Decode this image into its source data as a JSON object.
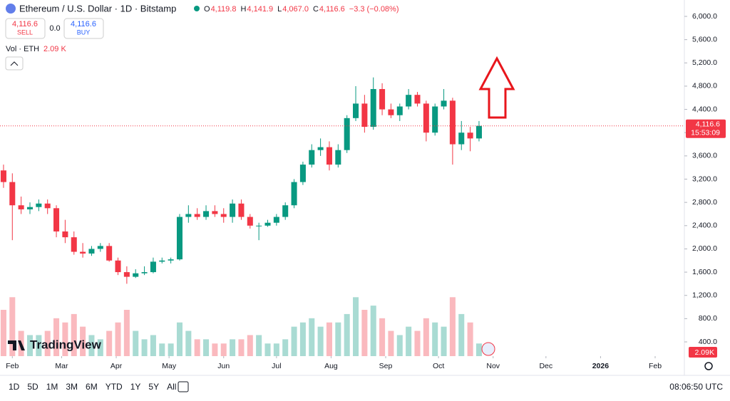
{
  "header": {
    "symbol": "Ethereum / U.S. Dollar · 1D · Bitstamp",
    "ohlc": [
      {
        "key": "O",
        "value": "4,119.8"
      },
      {
        "key": "H",
        "value": "4,141.9"
      },
      {
        "key": "L",
        "value": "4,067.0"
      },
      {
        "key": "C",
        "value": "4,116.6"
      }
    ],
    "change": "−3.3 (−0.08%)",
    "sell_price": "4,116.6",
    "sell_label": "SELL",
    "spread": "0.0",
    "buy_price": "4,116.6",
    "buy_label": "BUY",
    "volume_label": "Vol · ETH",
    "volume_value": "2.09 K"
  },
  "chart_data": {
    "type": "candlestick",
    "up_color": "#089981",
    "down_color": "#f23645",
    "grid": false,
    "x": [
      0,
      5,
      10,
      15,
      20,
      25,
      30,
      35,
      40,
      45,
      50,
      55,
      60,
      65,
      70,
      75,
      80,
      85,
      90,
      95,
      100,
      105,
      110,
      115,
      120,
      125,
      130,
      135,
      140,
      145,
      150,
      155,
      160,
      165,
      170,
      175,
      180,
      185,
      190,
      195,
      200,
      205,
      210,
      215,
      220,
      225,
      230,
      235,
      240,
      245,
      250,
      255,
      260,
      265,
      270
    ],
    "candles": [
      [
        3350,
        3450,
        3050,
        3150
      ],
      [
        3150,
        3300,
        2150,
        2750
      ],
      [
        2750,
        2900,
        2600,
        2680
      ],
      [
        2680,
        2800,
        2600,
        2720
      ],
      [
        2720,
        2850,
        2650,
        2780
      ],
      [
        2780,
        2850,
        2600,
        2700
      ],
      [
        2700,
        2750,
        2200,
        2300
      ],
      [
        2300,
        2500,
        2100,
        2200
      ],
      [
        2200,
        2300,
        1900,
        1950
      ],
      [
        1950,
        2100,
        1850,
        1920
      ],
      [
        1920,
        2050,
        1880,
        2000
      ],
      [
        2000,
        2100,
        1950,
        2050
      ],
      [
        2050,
        2100,
        1780,
        1800
      ],
      [
        1800,
        1850,
        1550,
        1600
      ],
      [
        1600,
        1700,
        1400,
        1520
      ],
      [
        1520,
        1650,
        1500,
        1580
      ],
      [
        1580,
        1700,
        1550,
        1600
      ],
      [
        1600,
        1850,
        1580,
        1780
      ],
      [
        1780,
        1850,
        1750,
        1800
      ],
      [
        1800,
        1850,
        1750,
        1820
      ],
      [
        1820,
        2600,
        1800,
        2550
      ],
      [
        2550,
        2750,
        2450,
        2600
      ],
      [
        2600,
        2700,
        2500,
        2550
      ],
      [
        2550,
        2750,
        2500,
        2650
      ],
      [
        2650,
        2750,
        2550,
        2600
      ],
      [
        2600,
        2700,
        2450,
        2550
      ],
      [
        2550,
        2850,
        2450,
        2780
      ],
      [
        2780,
        2850,
        2500,
        2550
      ],
      [
        2550,
        2600,
        2350,
        2400
      ],
      [
        2400,
        2450,
        2150,
        2400
      ],
      [
        2400,
        2500,
        2380,
        2450
      ],
      [
        2450,
        2600,
        2400,
        2550
      ],
      [
        2550,
        2800,
        2500,
        2750
      ],
      [
        2750,
        3200,
        2700,
        3150
      ],
      [
        3150,
        3500,
        3100,
        3450
      ],
      [
        3450,
        3800,
        3400,
        3700
      ],
      [
        3700,
        3900,
        3600,
        3750
      ],
      [
        3750,
        3850,
        3350,
        3450
      ],
      [
        3450,
        3800,
        3400,
        3700
      ],
      [
        3700,
        4300,
        3650,
        4250
      ],
      [
        4250,
        4800,
        4200,
        4500
      ],
      [
        4500,
        4650,
        4000,
        4100
      ],
      [
        4100,
        4950,
        4050,
        4750
      ],
      [
        4750,
        4850,
        4300,
        4400
      ],
      [
        4400,
        4500,
        4250,
        4300
      ],
      [
        4300,
        4500,
        4200,
        4450
      ],
      [
        4450,
        4750,
        4400,
        4650
      ],
      [
        4650,
        4700,
        4450,
        4500
      ],
      [
        4500,
        4550,
        3850,
        4000
      ],
      [
        4000,
        4500,
        3950,
        4450
      ],
      [
        4450,
        4750,
        4400,
        4550
      ],
      [
        4550,
        4600,
        3450,
        3800
      ],
      [
        3800,
        4200,
        3700,
        4000
      ],
      [
        4000,
        4100,
        3680,
        3900
      ],
      [
        3900,
        4200,
        3850,
        4116.6
      ]
    ],
    "volume": [
      11,
      14,
      6,
      5,
      5,
      6,
      9,
      8,
      10,
      7,
      5,
      4,
      6,
      8,
      11,
      6,
      4,
      5,
      3,
      3,
      8,
      6,
      4,
      4,
      3,
      3,
      4,
      4,
      5,
      5,
      3,
      3,
      4,
      7,
      8,
      9,
      7,
      8,
      8,
      10,
      14,
      11,
      12,
      9,
      6,
      5,
      7,
      6,
      9,
      8,
      7,
      14,
      10,
      8,
      3
    ],
    "vlim": [
      0,
      22
    ],
    "xlim": [
      -2,
      386.6
    ],
    "xticks": [
      {
        "value": 5,
        "label": "Feb"
      },
      {
        "value": 33,
        "label": "Mar"
      },
      {
        "value": 64,
        "label": "Apr"
      },
      {
        "value": 94,
        "label": "May"
      },
      {
        "value": 125,
        "label": "Jun"
      },
      {
        "value": 155,
        "label": "Jul"
      },
      {
        "value": 186,
        "label": "Aug"
      },
      {
        "value": 217,
        "label": "Sep"
      },
      {
        "value": 247,
        "label": "Oct"
      },
      {
        "value": 278,
        "label": "Nov"
      },
      {
        "value": 308,
        "label": "Dec"
      },
      {
        "value": 339,
        "label": "2026"
      },
      {
        "value": 370,
        "label": "Feb"
      }
    ],
    "ylim": [
      155,
      6282
    ],
    "yticks": [
      {
        "value": 400,
        "label": "400.0"
      },
      {
        "value": 800,
        "label": "800.0"
      },
      {
        "value": 1200,
        "label": "1,200.0"
      },
      {
        "value": 1600,
        "label": "1,600.0"
      },
      {
        "value": 2000,
        "label": "2,000.0"
      },
      {
        "value": 2400,
        "label": "2,400.0"
      },
      {
        "value": 2800,
        "label": "2,800.0"
      },
      {
        "value": 3200,
        "label": "3,200.0"
      },
      {
        "value": 3600,
        "label": "3,600.0"
      },
      {
        "value": 4000,
        "label": "4,000.0"
      },
      {
        "value": 4400,
        "label": "4,400.0"
      },
      {
        "value": 4800,
        "label": "4,800.0"
      },
      {
        "value": 5200,
        "label": "5,200.0"
      },
      {
        "value": 5600,
        "label": "5,600.0"
      },
      {
        "value": 6000,
        "label": "6,000.0"
      }
    ],
    "last_price": {
      "value": 4116.6,
      "label": "4,116.6"
    },
    "countdown": "15:53:09",
    "volume_badge": "2.09K"
  },
  "logo": "TradingView",
  "toolbar": {
    "ranges": [
      "1D",
      "5D",
      "1M",
      "3M",
      "6M",
      "YTD",
      "1Y",
      "5Y",
      "All"
    ],
    "clock": "08:06:50 UTC"
  }
}
